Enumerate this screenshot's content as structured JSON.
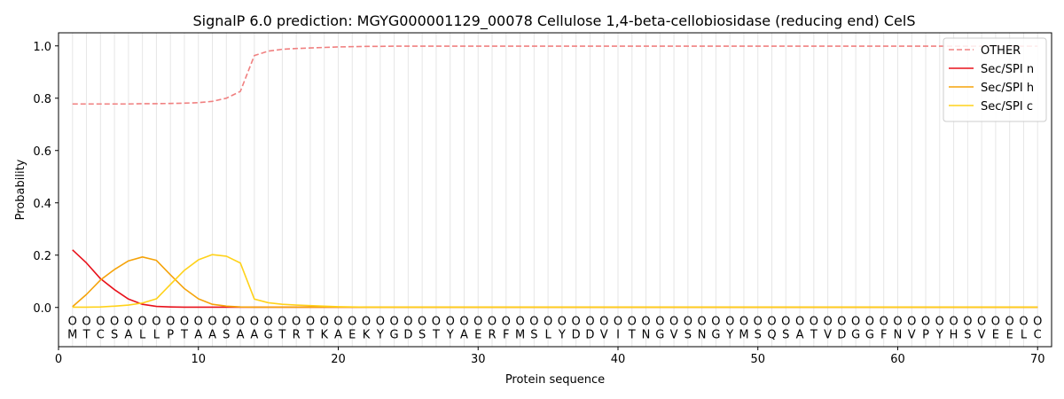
{
  "chart_data": {
    "type": "line",
    "title": "SignalP 6.0 prediction: MGYG000001129_00078 Cellulose 1,4-beta-cellobiosidase (reducing end) CelS",
    "xlabel": "Protein sequence",
    "ylabel": "Probability",
    "xlim": [
      0,
      71
    ],
    "ylim": [
      -0.15,
      1.05
    ],
    "x_ticks": [
      0,
      10,
      20,
      30,
      40,
      50,
      60,
      70
    ],
    "y_ticks": [
      0.0,
      0.2,
      0.4,
      0.6,
      0.8,
      1.0
    ],
    "x_tick_labels": [
      "0",
      "10",
      "20",
      "30",
      "40",
      "50",
      "60",
      "70"
    ],
    "y_tick_labels": [
      "0.0",
      "0.2",
      "0.4",
      "0.6",
      "0.8",
      "1.0"
    ],
    "grid": "vertical lines at each residue",
    "legend_position": "top-right",
    "sequence": [
      "M",
      "T",
      "C",
      "S",
      "A",
      "L",
      "L",
      "P",
      "T",
      "A",
      "A",
      "S",
      "A",
      "A",
      "G",
      "T",
      "R",
      "T",
      "K",
      "A",
      "E",
      "K",
      "Y",
      "G",
      "D",
      "S",
      "T",
      "Y",
      "A",
      "E",
      "R",
      "F",
      "M",
      "S",
      "L",
      "Y",
      "D",
      "D",
      "V",
      "I",
      "T",
      "N",
      "G",
      "V",
      "S",
      "N",
      "G",
      "Y",
      "M",
      "S",
      "Q",
      "S",
      "A",
      "T",
      "V",
      "D",
      "G",
      "G",
      "F",
      "N",
      "V",
      "P",
      "Y",
      "H",
      "S",
      "V",
      "E",
      "E",
      "L",
      "C"
    ],
    "region_labels": [
      "O",
      "O",
      "O",
      "O",
      "O",
      "O",
      "O",
      "O",
      "O",
      "O",
      "O",
      "O",
      "O",
      "O",
      "O",
      "O",
      "O",
      "O",
      "O",
      "O",
      "O",
      "O",
      "O",
      "O",
      "O",
      "O",
      "O",
      "O",
      "O",
      "O",
      "O",
      "O",
      "O",
      "O",
      "O",
      "O",
      "O",
      "O",
      "O",
      "O",
      "O",
      "O",
      "O",
      "O",
      "O",
      "O",
      "O",
      "O",
      "O",
      "O",
      "O",
      "O",
      "O",
      "O",
      "O",
      "O",
      "O",
      "O",
      "O",
      "O",
      "O",
      "O",
      "O",
      "O",
      "O",
      "O",
      "O",
      "O",
      "O",
      "O"
    ],
    "series": [
      {
        "name": "OTHER",
        "color": "#f08080",
        "dash": "dashed",
        "values": [
          0.778,
          0.778,
          0.778,
          0.778,
          0.778,
          0.779,
          0.779,
          0.78,
          0.781,
          0.783,
          0.788,
          0.8,
          0.826,
          0.963,
          0.98,
          0.987,
          0.99,
          0.992,
          0.994,
          0.996,
          0.997,
          0.998,
          0.998,
          0.999,
          0.999,
          0.999,
          0.999,
          0.999,
          0.999,
          0.999,
          0.999,
          0.999,
          0.999,
          0.999,
          0.999,
          0.999,
          0.999,
          0.999,
          0.999,
          0.999,
          0.999,
          0.999,
          0.999,
          0.999,
          0.999,
          0.999,
          0.999,
          0.999,
          0.999,
          0.999,
          0.999,
          0.999,
          0.999,
          0.999,
          0.999,
          0.999,
          0.999,
          0.999,
          0.999,
          0.999,
          0.999,
          0.999,
          0.999,
          0.999,
          0.999,
          0.999,
          0.999,
          0.999,
          0.999,
          0.999
        ]
      },
      {
        "name": "Sec/SPI n",
        "color": "#e8111b",
        "dash": "solid",
        "values": [
          0.22,
          0.17,
          0.11,
          0.068,
          0.032,
          0.012,
          0.004,
          0.002,
          0.001,
          0.001,
          0.001,
          0.001,
          0.001,
          0.001,
          0.001,
          0.001,
          0.001,
          0.001,
          0.001,
          0.001,
          0.001,
          0.001,
          0.001,
          0.001,
          0.001,
          0.001,
          0.001,
          0.001,
          0.001,
          0.001,
          0.001,
          0.001,
          0.001,
          0.001,
          0.001,
          0.001,
          0.001,
          0.001,
          0.001,
          0.001,
          0.001,
          0.001,
          0.001,
          0.001,
          0.001,
          0.001,
          0.001,
          0.001,
          0.001,
          0.001,
          0.001,
          0.001,
          0.001,
          0.001,
          0.001,
          0.001,
          0.001,
          0.001,
          0.001,
          0.001,
          0.001,
          0.001,
          0.001,
          0.001,
          0.001,
          0.001,
          0.001,
          0.001,
          0.001,
          0.001
        ]
      },
      {
        "name": "Sec/SPI h",
        "color": "#f5a30a",
        "dash": "solid",
        "values": [
          0.003,
          0.05,
          0.105,
          0.145,
          0.178,
          0.193,
          0.18,
          0.125,
          0.072,
          0.033,
          0.012,
          0.005,
          0.002,
          0.001,
          0.001,
          0.001,
          0.001,
          0.001,
          0.001,
          0.001,
          0.001,
          0.001,
          0.001,
          0.001,
          0.001,
          0.001,
          0.001,
          0.001,
          0.001,
          0.001,
          0.001,
          0.001,
          0.001,
          0.001,
          0.001,
          0.001,
          0.001,
          0.001,
          0.001,
          0.001,
          0.001,
          0.001,
          0.001,
          0.001,
          0.001,
          0.001,
          0.001,
          0.001,
          0.001,
          0.001,
          0.001,
          0.001,
          0.001,
          0.001,
          0.001,
          0.001,
          0.001,
          0.001,
          0.001,
          0.001,
          0.001,
          0.001,
          0.001,
          0.001,
          0.001,
          0.001,
          0.001,
          0.001,
          0.001,
          0.001
        ]
      },
      {
        "name": "Sec/SPI c",
        "color": "#ffd21a",
        "dash": "solid",
        "values": [
          0.001,
          0.001,
          0.002,
          0.005,
          0.009,
          0.017,
          0.033,
          0.088,
          0.142,
          0.182,
          0.202,
          0.196,
          0.17,
          0.032,
          0.018,
          0.012,
          0.009,
          0.007,
          0.005,
          0.003,
          0.002,
          0.001,
          0.001,
          0.001,
          0.001,
          0.001,
          0.001,
          0.001,
          0.001,
          0.001,
          0.001,
          0.001,
          0.001,
          0.001,
          0.001,
          0.001,
          0.001,
          0.001,
          0.001,
          0.001,
          0.001,
          0.001,
          0.001,
          0.001,
          0.001,
          0.001,
          0.001,
          0.001,
          0.001,
          0.001,
          0.001,
          0.001,
          0.001,
          0.001,
          0.001,
          0.001,
          0.001,
          0.001,
          0.001,
          0.001,
          0.001,
          0.001,
          0.001,
          0.001,
          0.001,
          0.001,
          0.001,
          0.001,
          0.001,
          0.001
        ]
      }
    ]
  }
}
